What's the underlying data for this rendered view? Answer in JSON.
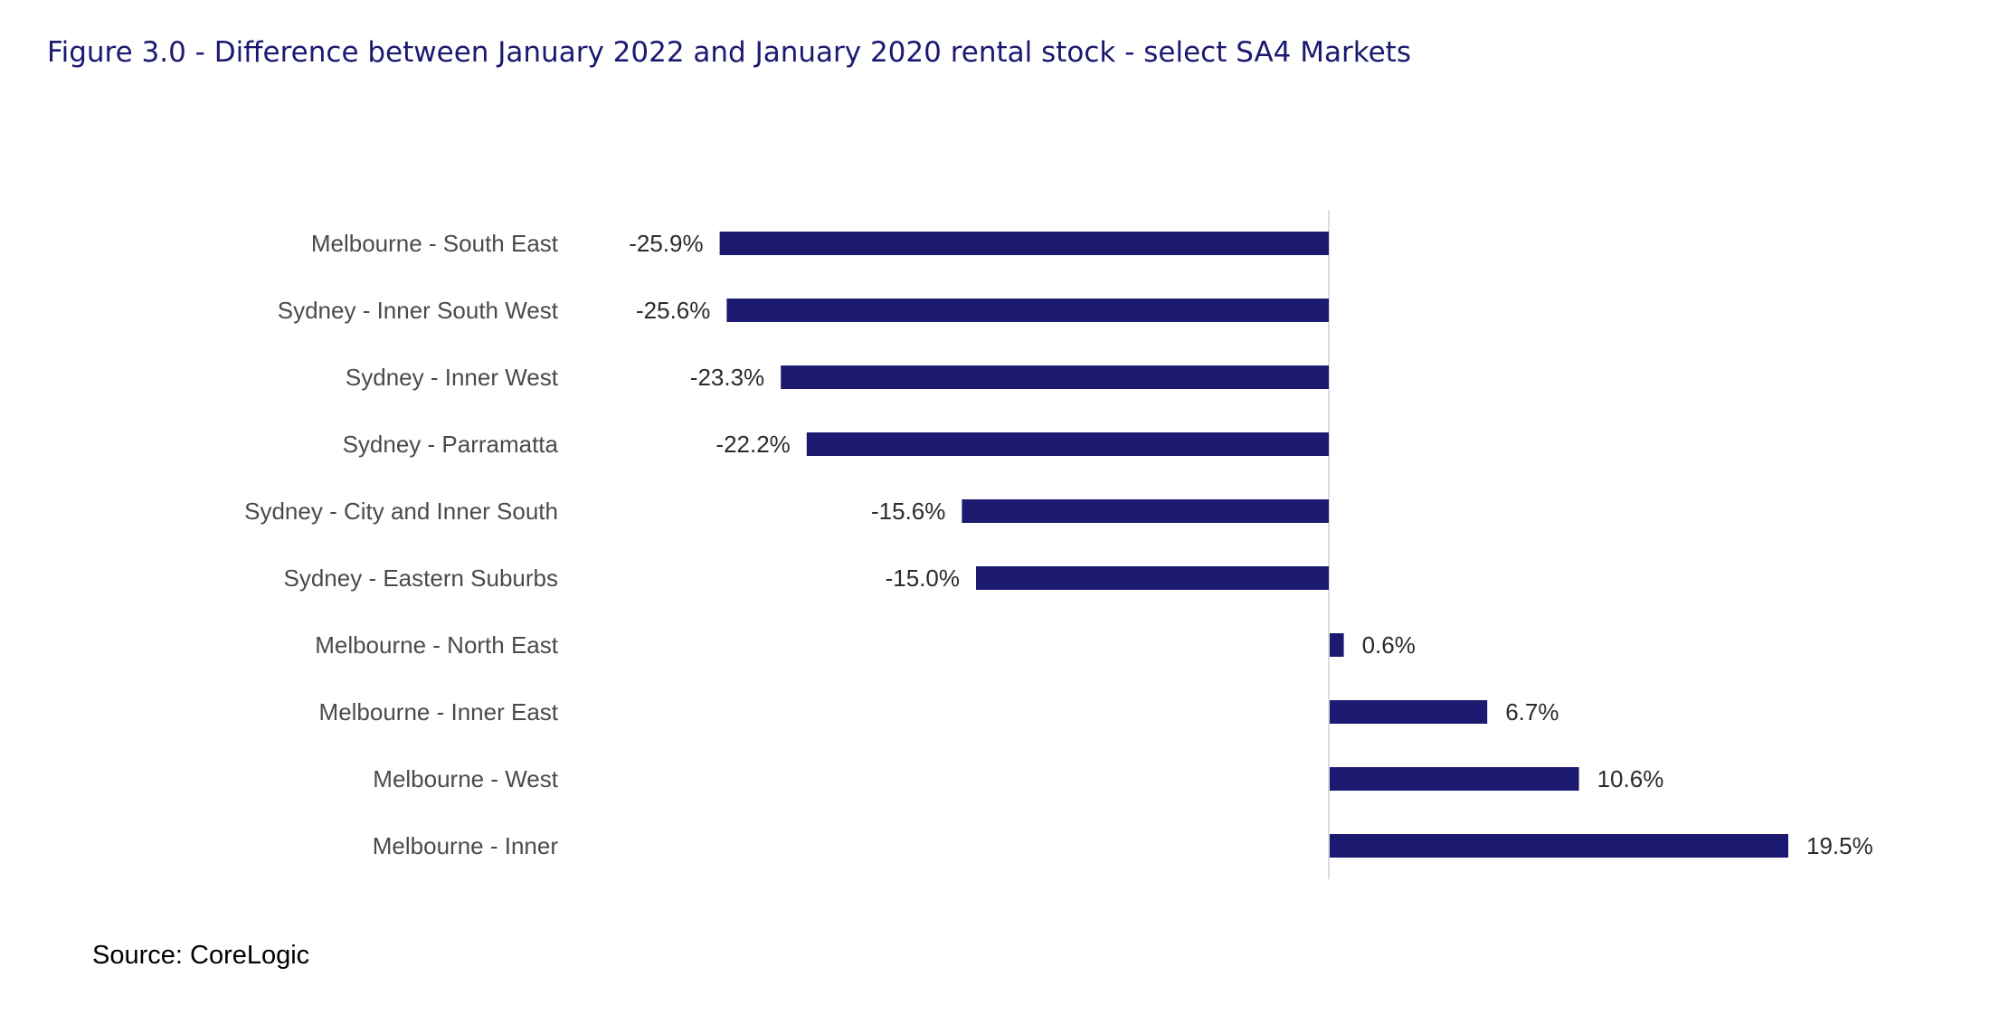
{
  "figure": {
    "title": "Figure 3.0 - Difference between January 2022 and January 2020 rental stock - select SA4 Markets",
    "source": "Source: CoreLogic"
  },
  "colors": {
    "bar": "#1b1970",
    "title": "#1b1970",
    "axis": "#cfcfcf"
  },
  "chart_data": {
    "type": "bar",
    "orientation": "horizontal",
    "title": "Figure 3.0 - Difference between January 2022 and January 2020 rental stock - select SA4 Markets",
    "xlabel": "",
    "ylabel": "",
    "grid": false,
    "legend": "none",
    "xlim": [
      -25.9,
      19.5
    ],
    "categories": [
      "Melbourne - South East",
      "Sydney - Inner South West",
      "Sydney - Inner West",
      "Sydney - Parramatta",
      "Sydney - City and Inner South",
      "Sydney - Eastern Suburbs",
      "Melbourne - North East",
      "Melbourne - Inner East",
      "Melbourne - West",
      "Melbourne - Inner"
    ],
    "values": [
      -25.9,
      -25.6,
      -23.3,
      -22.2,
      -15.6,
      -15.0,
      0.6,
      6.7,
      10.6,
      19.5
    ],
    "data_labels": [
      "-25.9%",
      "-25.6%",
      "-23.3%",
      "-22.2%",
      "-15.6%",
      "-15.0%",
      "0.6%",
      "6.7%",
      "10.6%",
      "19.5%"
    ]
  }
}
